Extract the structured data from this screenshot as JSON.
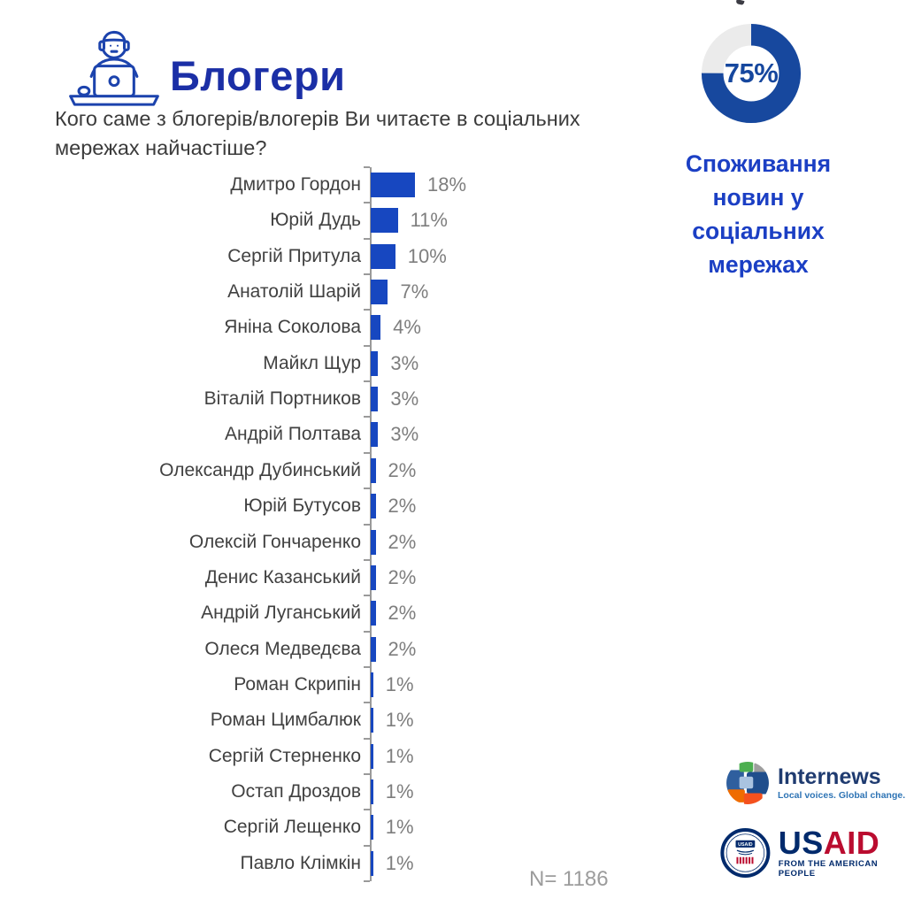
{
  "header": {
    "title": "Блогери",
    "subtitle": "Кого саме з блогерів/влогерів Ви читаєте в соціальних\nмережах найчастіше?",
    "icon": "blogger-at-laptop-icon"
  },
  "chart_data": {
    "type": "bar",
    "orientation": "horizontal",
    "title": "Кого саме з блогерів/влогерів Ви читаєте в соціальних мережах найчастіше?",
    "categories": [
      "Дмитро Гордон",
      "Юрій Дудь",
      "Сергій Притула",
      "Анатолій Шарій",
      "Яніна Соколова",
      "Майкл Щур",
      "Віталій Портников",
      "Андрій Полтава",
      "Олександр Дубинський",
      "Юрій Бутусов",
      "Олексій Гончаренко",
      "Денис Казанський",
      "Андрій Луганський",
      "Олеся Медведєва",
      "Роман Скрипін",
      "Роман Цимбалюк",
      "Сергій Стерненко",
      "Остап Дроздов",
      "Сергій Лещенко",
      "Павло Клімкін"
    ],
    "values": [
      18,
      11,
      10,
      7,
      4,
      3,
      3,
      3,
      2,
      2,
      2,
      2,
      2,
      2,
      1,
      1,
      1,
      1,
      1,
      1
    ],
    "value_suffix": "%",
    "xlim": [
      0,
      20
    ],
    "grid": false,
    "bar_color": "#1747c0",
    "label_color": "#414141",
    "value_color": "#7e7e7e"
  },
  "donut": {
    "type": "donut",
    "percent": 75,
    "center_label": "75%",
    "caption": "Споживання\nновин у\nсоціальних\nмережах",
    "ring_color": "#17489e",
    "track_color": "#ebebeb"
  },
  "sample_size": "N= 1186",
  "logos": {
    "internews": {
      "name": "Internews",
      "tagline": "Local voices. Global change."
    },
    "usaid": {
      "us": "US",
      "aid": "AID",
      "tagline": "FROM THE AMERICAN PEOPLE",
      "seal_text": "USAID"
    }
  }
}
